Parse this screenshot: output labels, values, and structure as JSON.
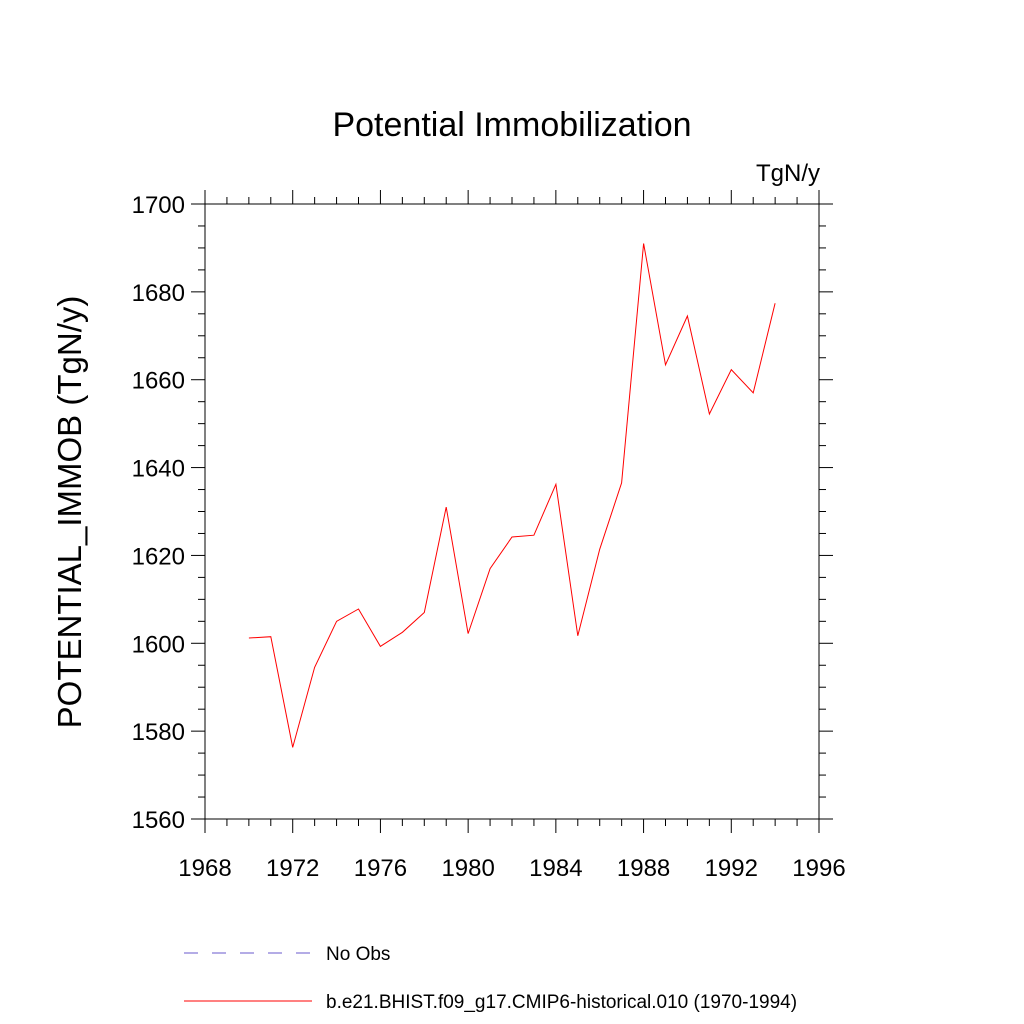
{
  "chart_data": {
    "type": "line",
    "title": "Potential Immobilization",
    "units_label": "TgN/y",
    "ylabel": "POTENTIAL_IMMOB  (TgN/y)",
    "xlabel": "",
    "xlim": [
      1968,
      1996
    ],
    "ylim": [
      1560,
      1700
    ],
    "x_ticks": [
      1968,
      1972,
      1976,
      1980,
      1984,
      1988,
      1992,
      1996
    ],
    "y_ticks": [
      1560,
      1580,
      1600,
      1620,
      1640,
      1660,
      1680,
      1700
    ],
    "grid": false,
    "legend_position": "bottom",
    "series": [
      {
        "name": "b.e21.BHIST.f09_g17.CMIP6-historical.010 (1970-1994)",
        "color": "#ff0000",
        "style": "solid",
        "x": [
          1970,
          1971,
          1972,
          1973,
          1974,
          1975,
          1976,
          1977,
          1978,
          1979,
          1980,
          1981,
          1982,
          1983,
          1984,
          1985,
          1986,
          1987,
          1988,
          1989,
          1990,
          1991,
          1992,
          1993,
          1994
        ],
        "y": [
          1601.2,
          1601.5,
          1576.3,
          1594.5,
          1605.0,
          1607.8,
          1599.3,
          1602.5,
          1607.0,
          1631.0,
          1602.2,
          1617.0,
          1624.2,
          1624.6,
          1636.2,
          1601.7,
          1621.4,
          1636.5,
          1691.0,
          1663.4,
          1674.5,
          1652.2,
          1662.3,
          1657.0,
          1677.4
        ]
      }
    ],
    "legend": [
      {
        "label": "No Obs",
        "color": "#6a5acd",
        "style": "dashed"
      },
      {
        "label": "b.e21.BHIST.f09_g17.CMIP6-historical.010 (1970-1994)",
        "color": "#ff0000",
        "style": "solid"
      }
    ]
  }
}
